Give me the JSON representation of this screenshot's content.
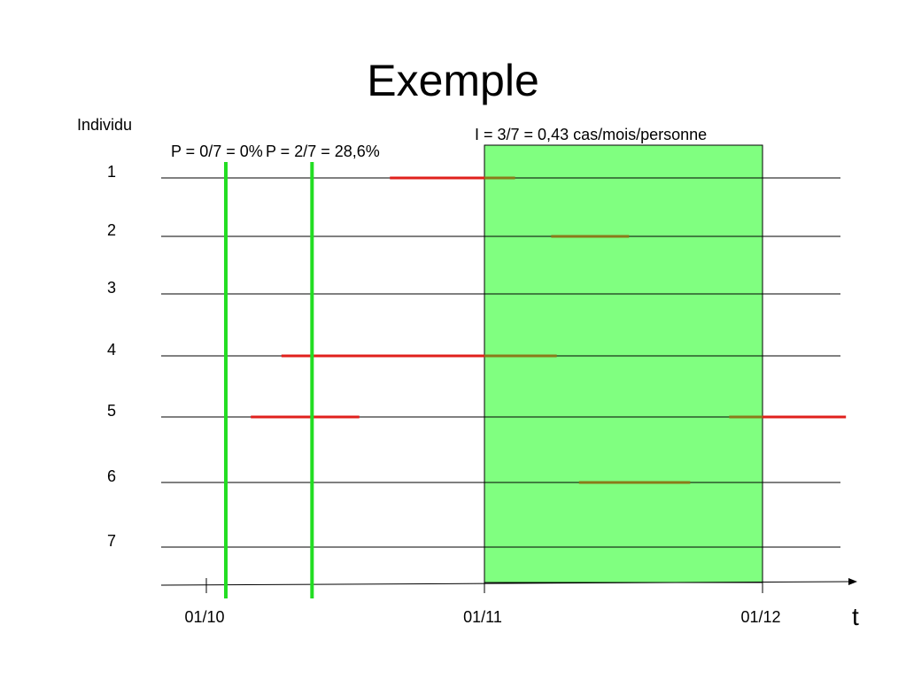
{
  "title": "Exemple",
  "y_axis_label": "Individu",
  "x_axis_label": "t",
  "prevalence_labels": [
    "P = 0/7 = 0%",
    "P = 2/7 = 28,6%"
  ],
  "incidence_label": "I = 3/7 = 0,43 cas/mois/personne",
  "individuals": [
    "1",
    "2",
    "3",
    "4",
    "5",
    "6",
    "7"
  ],
  "ticks": [
    "01/10",
    "01/11",
    "01/12"
  ],
  "colors": {
    "episode": "#e0201c",
    "episode_in_window": "#8a7a1a",
    "prevalence_line": "#22dd22",
    "incidence_window": "#80ff80",
    "axis": "#000000"
  },
  "timeline": {
    "start": "01/10",
    "end_visible_months": 2.3,
    "prevalence_times_months": [
      0.07,
      0.38
    ],
    "incidence_window_months": [
      1.0,
      2.0
    ]
  },
  "episodes": [
    {
      "individual": 1,
      "start_months": 0.66,
      "end_months": 1.11
    },
    {
      "individual": 2,
      "start_months": 1.24,
      "end_months": 1.52
    },
    {
      "individual": 4,
      "start_months": 0.27,
      "end_months": 1.26
    },
    {
      "individual": 5,
      "start_months": 0.16,
      "end_months": 0.55
    },
    {
      "individual": 5,
      "start_months": 1.88,
      "end_months": 2.3
    },
    {
      "individual": 6,
      "start_months": 1.34,
      "end_months": 1.74
    }
  ]
}
